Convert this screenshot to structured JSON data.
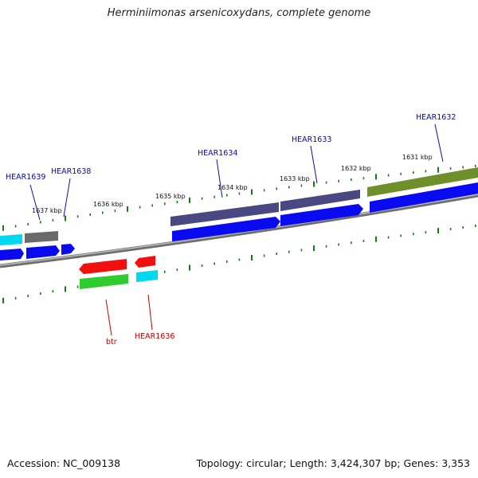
{
  "title": "Herminiimonas arsenicoxydans, complete genome",
  "accession": "Accession: NC_009138",
  "summary": "Topology: circular; Length: 3,424,307 bp; Genes: 3,353",
  "colors": {
    "backbone": "#808080",
    "tick": "#1a7a1a",
    "forward_label": "#0a0a9a",
    "reverse_label": "#c00000"
  },
  "kbp_labels": [
    "1637 kbp",
    "1636 kbp",
    "1635 kbp",
    "1634 kbp",
    "1633 kbp",
    "1632 kbp",
    "1631 kbp"
  ],
  "forward_gene_labels": [
    "HEAR1639",
    "HEAR1638",
    "HEAR1634",
    "HEAR1633",
    "HEAR1632"
  ],
  "reverse_gene_labels": [
    "btr",
    "HEAR1636"
  ]
}
